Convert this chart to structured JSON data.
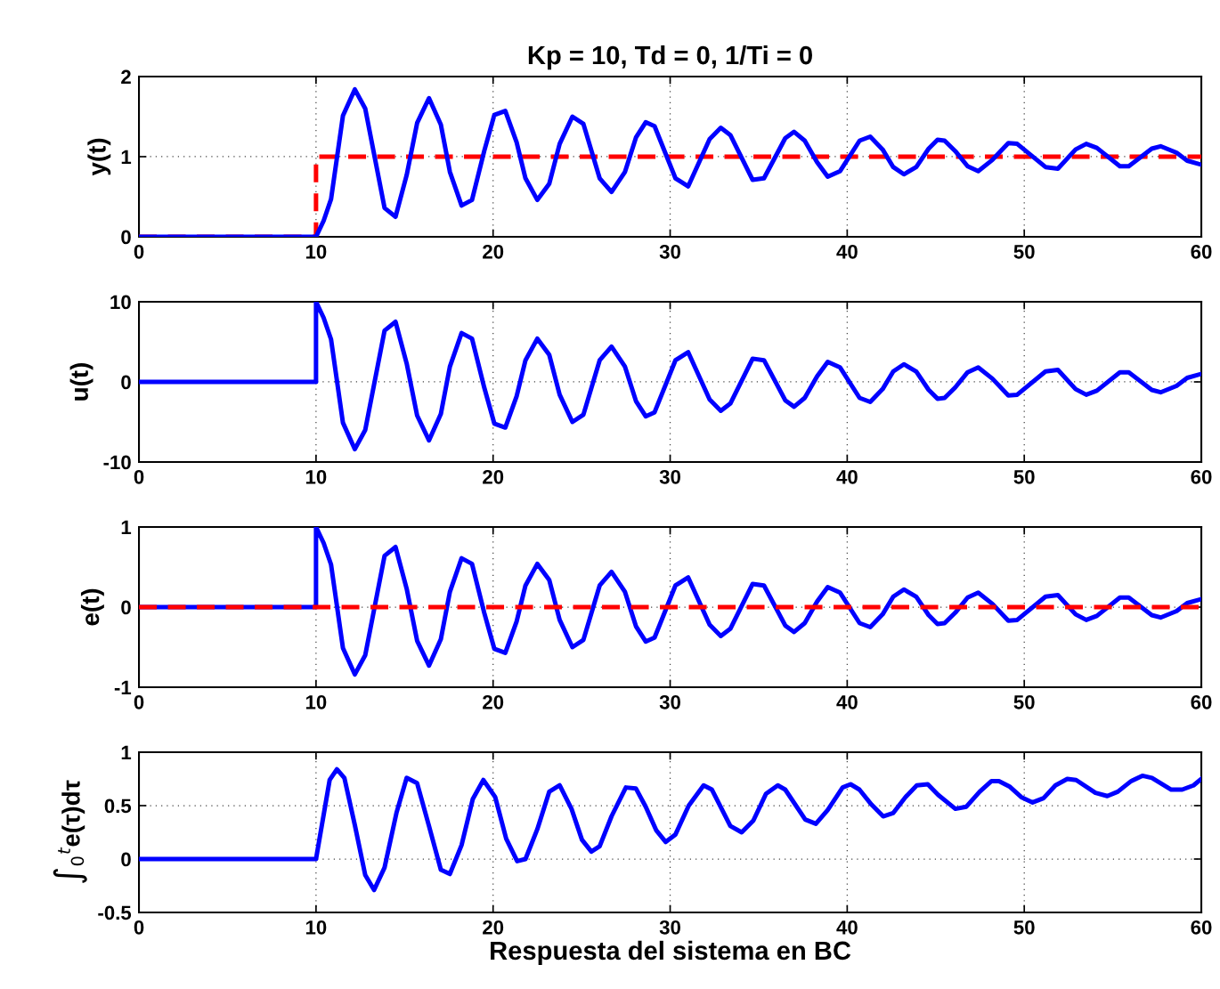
{
  "chart_data": [
    {
      "type": "line",
      "title": "Kp = 10, Td = 0, 1/Ti = 0",
      "ylabel": "y(t)",
      "xlim": [
        0,
        60
      ],
      "xticks": [
        0,
        10,
        20,
        30,
        40,
        50,
        60
      ],
      "ylim": [
        0,
        2
      ],
      "yticks": [
        0,
        1,
        2
      ],
      "grid": true,
      "line_style": "solid",
      "series": [
        {
          "color": "#ff0000",
          "line_style": "dashed",
          "x": [
            0,
            10,
            10,
            60
          ],
          "values": [
            0,
            0,
            1,
            1
          ]
        },
        {
          "color": "#0000ff",
          "x": [
            0,
            10,
            10.43,
            10.85,
            11.52,
            12.19,
            12.78,
            13.87,
            14.49,
            15.12,
            15.71,
            16.38,
            17.05,
            17.56,
            18.22,
            18.81,
            19.5,
            20.07,
            20.69,
            21.33,
            21.83,
            22.5,
            23.17,
            23.76,
            24.48,
            25.1,
            26.02,
            26.69,
            27.45,
            28.07,
            28.62,
            29.12,
            30.3,
            31.02,
            32.23,
            32.86,
            33.4,
            34.66,
            35.3,
            36.5,
            37.0,
            37.6,
            38.3,
            38.9,
            39.6,
            40.7,
            41.3,
            42.0,
            42.6,
            43.2,
            43.9,
            44.6,
            45.1,
            45.5,
            46.1,
            46.8,
            47.4,
            48.2,
            49.1,
            49.6,
            51.2,
            51.9,
            52.9,
            53.5,
            54.1,
            55.4,
            55.9,
            57.2,
            57.7,
            58.6,
            59.2,
            60
          ],
          "values": [
            0,
            0,
            0.2,
            0.47,
            1.51,
            1.84,
            1.6,
            0.36,
            0.25,
            0.77,
            1.42,
            1.73,
            1.4,
            0.81,
            0.39,
            0.46,
            1.07,
            1.52,
            1.57,
            1.18,
            0.73,
            0.46,
            0.66,
            1.16,
            1.5,
            1.41,
            0.73,
            0.56,
            0.81,
            1.24,
            1.43,
            1.38,
            0.73,
            0.63,
            1.22,
            1.36,
            1.27,
            0.71,
            0.73,
            1.23,
            1.31,
            1.2,
            0.93,
            0.75,
            0.82,
            1.2,
            1.25,
            1.09,
            0.87,
            0.78,
            0.87,
            1.1,
            1.21,
            1.2,
            1.07,
            0.88,
            0.82,
            0.96,
            1.17,
            1.16,
            0.87,
            0.85,
            1.09,
            1.16,
            1.11,
            0.88,
            0.88,
            1.1,
            1.13,
            1.05,
            0.95,
            0.9
          ]
        }
      ]
    },
    {
      "type": "line",
      "ylabel": "u(t)",
      "xlim": [
        0,
        60
      ],
      "xticks": [
        0,
        10,
        20,
        30,
        40,
        50,
        60
      ],
      "ylim": [
        -10,
        10
      ],
      "yticks": [
        -10,
        0,
        10
      ],
      "grid": true,
      "line_style": "solid",
      "series": [
        {
          "color": "#0000ff",
          "x": [
            0,
            10,
            10,
            10.43,
            10.85,
            11.52,
            12.19,
            12.78,
            13.87,
            14.49,
            15.12,
            15.71,
            16.38,
            17.05,
            17.56,
            18.22,
            18.81,
            19.5,
            20.07,
            20.69,
            21.33,
            21.83,
            22.5,
            23.17,
            23.76,
            24.48,
            25.1,
            26.02,
            26.69,
            27.45,
            28.07,
            28.62,
            29.12,
            30.3,
            31.02,
            32.23,
            32.86,
            33.4,
            34.66,
            35.3,
            36.5,
            37.0,
            37.6,
            38.3,
            38.9,
            39.6,
            40.7,
            41.3,
            42.0,
            42.6,
            43.2,
            43.9,
            44.6,
            45.1,
            45.5,
            46.1,
            46.8,
            47.4,
            48.2,
            49.1,
            49.6,
            51.2,
            51.9,
            52.9,
            53.5,
            54.1,
            55.4,
            55.9,
            57.2,
            57.7,
            58.6,
            59.2,
            60
          ],
          "values": [
            0,
            0,
            10,
            8,
            5.3,
            -5.1,
            -8.4,
            -6,
            6.4,
            7.5,
            2.3,
            -4.2,
            -7.3,
            -4,
            1.9,
            6.1,
            5.4,
            -0.7,
            -5.2,
            -5.7,
            -1.8,
            2.7,
            5.4,
            3.4,
            -1.6,
            -5,
            -4.1,
            2.7,
            4.4,
            1.9,
            -2.4,
            -4.3,
            -3.8,
            2.7,
            3.7,
            -2.2,
            -3.6,
            -2.7,
            2.9,
            2.7,
            -2.3,
            -3.1,
            -2,
            0.7,
            2.5,
            1.8,
            -2,
            -2.5,
            -0.9,
            1.3,
            2.2,
            1.3,
            -1,
            -2.1,
            -2,
            -0.7,
            1.2,
            1.8,
            0.4,
            -1.7,
            -1.6,
            1.3,
            1.5,
            -0.9,
            -1.6,
            -1.1,
            1.2,
            1.2,
            -1,
            -1.3,
            -0.5,
            0.5,
            1
          ]
        }
      ]
    },
    {
      "type": "line",
      "ylabel": "e(t)",
      "xlim": [
        0,
        60
      ],
      "xticks": [
        0,
        10,
        20,
        30,
        40,
        50,
        60
      ],
      "ylim": [
        -1,
        1
      ],
      "yticks": [
        -1,
        0,
        1
      ],
      "grid": true,
      "line_style": "solid",
      "series": [
        {
          "color": "#0000ff",
          "x": [
            0,
            10,
            10,
            10.43,
            10.85,
            11.52,
            12.19,
            12.78,
            13.87,
            14.49,
            15.12,
            15.71,
            16.38,
            17.05,
            17.56,
            18.22,
            18.81,
            19.5,
            20.07,
            20.69,
            21.33,
            21.83,
            22.5,
            23.17,
            23.76,
            24.48,
            25.1,
            26.02,
            26.69,
            27.45,
            28.07,
            28.62,
            29.12,
            30.3,
            31.02,
            32.23,
            32.86,
            33.4,
            34.66,
            35.3,
            36.5,
            37.0,
            37.6,
            38.3,
            38.9,
            39.6,
            40.7,
            41.3,
            42.0,
            42.6,
            43.2,
            43.9,
            44.6,
            45.1,
            45.5,
            46.1,
            46.8,
            47.4,
            48.2,
            49.1,
            49.6,
            51.2,
            51.9,
            52.9,
            53.5,
            54.1,
            55.4,
            55.9,
            57.2,
            57.7,
            58.6,
            59.2,
            60
          ],
          "values": [
            0,
            0,
            1,
            0.8,
            0.53,
            -0.51,
            -0.84,
            -0.6,
            0.64,
            0.75,
            0.23,
            -0.42,
            -0.73,
            -0.4,
            0.19,
            0.61,
            0.54,
            -0.07,
            -0.52,
            -0.57,
            -0.18,
            0.27,
            0.54,
            0.34,
            -0.16,
            -0.5,
            -0.41,
            0.27,
            0.44,
            0.19,
            -0.24,
            -0.43,
            -0.38,
            0.27,
            0.37,
            -0.22,
            -0.36,
            -0.27,
            0.29,
            0.27,
            -0.23,
            -0.31,
            -0.2,
            0.07,
            0.25,
            0.18,
            -0.2,
            -0.25,
            -0.09,
            0.13,
            0.22,
            0.13,
            -0.1,
            -0.21,
            -0.2,
            -0.07,
            0.12,
            0.18,
            0.04,
            -0.17,
            -0.16,
            0.13,
            0.15,
            -0.09,
            -0.16,
            -0.11,
            0.12,
            0.12,
            -0.1,
            -0.13,
            -0.05,
            0.05,
            0.1
          ]
        },
        {
          "color": "#ff0000",
          "line_style": "dashed",
          "x": [
            0,
            60
          ],
          "values": [
            0,
            0
          ]
        }
      ]
    },
    {
      "type": "line",
      "ylabel": "∫$_{0}$$^{t}$e(τ)dτ",
      "xlabel": "Respuesta del sistema en BC",
      "xlim": [
        0,
        60
      ],
      "xticks": [
        0,
        10,
        20,
        30,
        40,
        50,
        60
      ],
      "ylim": [
        -0.5,
        1
      ],
      "yticks": [
        -0.5,
        0,
        0.5,
        1
      ],
      "grid": true,
      "line_style": "solid",
      "series": [
        {
          "color": "#0000ff",
          "x": [
            0,
            10,
            10.77,
            11.18,
            11.6,
            12.19,
            12.78,
            13.28,
            13.87,
            14.54,
            15.12,
            15.71,
            16.38,
            17.05,
            17.56,
            18.22,
            18.85,
            19.45,
            20.12,
            20.74,
            21.36,
            21.83,
            22.5,
            23.17,
            23.76,
            24.43,
            25.02,
            25.55,
            26.02,
            26.69,
            27.5,
            28.07,
            28.62,
            29.21,
            29.75,
            30.3,
            31.05,
            31.89,
            32.36,
            33.4,
            34.04,
            34.7,
            35.41,
            36.08,
            36.5,
            37.63,
            38.23,
            38.9,
            39.74,
            40.19,
            40.69,
            41.37,
            42.03,
            42.59,
            43.29,
            43.93,
            44.55,
            45.14,
            46.11,
            46.73,
            47.48,
            48.15,
            48.57,
            49.16,
            49.83,
            50.47,
            51.09,
            51.76,
            52.43,
            52.93,
            54.02,
            54.69,
            55.28,
            56.04,
            56.67,
            57.21,
            58.3,
            58.92,
            59.56,
            60
          ],
          "values": [
            0,
            0,
            0.74,
            0.84,
            0.76,
            0.32,
            -0.15,
            -0.29,
            -0.08,
            0.43,
            0.76,
            0.71,
            0.31,
            -0.1,
            -0.14,
            0.13,
            0.56,
            0.74,
            0.58,
            0.19,
            -0.02,
            0,
            0.28,
            0.63,
            0.69,
            0.47,
            0.18,
            0.07,
            0.12,
            0.4,
            0.67,
            0.66,
            0.49,
            0.27,
            0.16,
            0.23,
            0.5,
            0.69,
            0.65,
            0.31,
            0.25,
            0.36,
            0.61,
            0.69,
            0.65,
            0.37,
            0.33,
            0.46,
            0.67,
            0.7,
            0.65,
            0.51,
            0.4,
            0.43,
            0.58,
            0.69,
            0.7,
            0.6,
            0.47,
            0.49,
            0.63,
            0.73,
            0.73,
            0.68,
            0.58,
            0.53,
            0.57,
            0.69,
            0.75,
            0.74,
            0.62,
            0.59,
            0.63,
            0.73,
            0.78,
            0.76,
            0.65,
            0.65,
            0.69,
            0.75
          ]
        }
      ]
    }
  ]
}
